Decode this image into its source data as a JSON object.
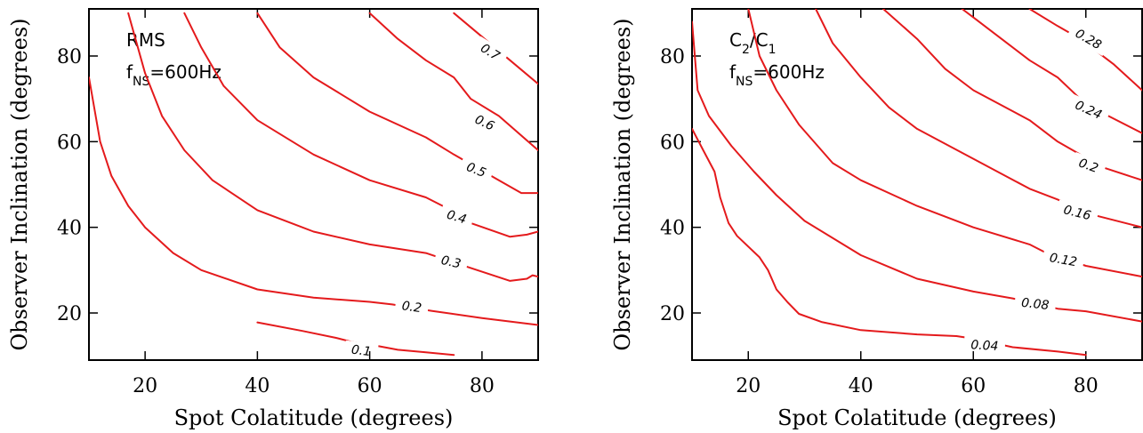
{
  "chart_data": [
    {
      "type": "contour",
      "panel_label_lines": [
        {
          "text": "RMS"
        },
        {
          "text": "f",
          "sub": "NS",
          "after": "=600Hz"
        }
      ],
      "xlabel": "Spot Colatitude (degrees)",
      "ylabel": "Observer Inclination (degrees)",
      "xlim": [
        10,
        90
      ],
      "ylim": [
        9,
        91
      ],
      "xticks": [
        20,
        40,
        60,
        80
      ],
      "yticks": [
        20,
        40,
        60,
        80
      ],
      "line_color": "#e41a1c",
      "contours": [
        {
          "level": 0.1,
          "label": "0.1",
          "label_at": [
            58.5,
            11.3
          ],
          "label_angle": 7,
          "points": [
            [
              40,
              17.8
            ],
            [
              48,
              15.8
            ],
            [
              54,
              14.2
            ],
            [
              57,
              13.2
            ],
            [
              61,
              12.4
            ],
            [
              65,
              11.4
            ],
            [
              70,
              10.8
            ],
            [
              75,
              10.2
            ]
          ]
        },
        {
          "level": 0.2,
          "label": "0.2",
          "label_at": [
            67.5,
            21.5
          ],
          "label_angle": 8,
          "points": [
            [
              10,
              75
            ],
            [
              12,
              60
            ],
            [
              14,
              52
            ],
            [
              17,
              45
            ],
            [
              20,
              40
            ],
            [
              25,
              34
            ],
            [
              30,
              30
            ],
            [
              40,
              25.5
            ],
            [
              50,
              23.6
            ],
            [
              60,
              22.6
            ],
            [
              64,
              22
            ],
            [
              71,
              20.5
            ],
            [
              80,
              18.8
            ],
            [
              90,
              17.2
            ]
          ]
        },
        {
          "level": 0.3,
          "label": "0.3",
          "label_at": [
            74.5,
            32
          ],
          "label_angle": 13,
          "points": [
            [
              17,
              90
            ],
            [
              20,
              76
            ],
            [
              23,
              66
            ],
            [
              27,
              58
            ],
            [
              32,
              51
            ],
            [
              40,
              44
            ],
            [
              50,
              39
            ],
            [
              60,
              36
            ],
            [
              70,
              34
            ],
            [
              78,
              30.5
            ],
            [
              85,
              27.5
            ],
            [
              88,
              28
            ],
            [
              89,
              28.8
            ],
            [
              90,
              28.5
            ]
          ]
        },
        {
          "level": 0.4,
          "label": "0.4",
          "label_at": [
            75.5,
            42.5
          ],
          "label_angle": 17,
          "points": [
            [
              27,
              90
            ],
            [
              30,
              82
            ],
            [
              34,
              73
            ],
            [
              40,
              65
            ],
            [
              50,
              57
            ],
            [
              60,
              51
            ],
            [
              70,
              47
            ],
            [
              73,
              45
            ],
            [
              78,
              41
            ],
            [
              85,
              37.8
            ],
            [
              88,
              38.3
            ],
            [
              90,
              39
            ]
          ]
        },
        {
          "level": 0.5,
          "label": "0.5",
          "label_at": [
            79,
            53.5
          ],
          "label_angle": 22,
          "points": [
            [
              40,
              90
            ],
            [
              44,
              82
            ],
            [
              50,
              75
            ],
            [
              60,
              67
            ],
            [
              70,
              61
            ],
            [
              75,
              57
            ],
            [
              83,
              51
            ],
            [
              87,
              48
            ],
            [
              90,
              48
            ]
          ]
        },
        {
          "level": 0.6,
          "label": "0.6",
          "label_at": [
            80.5,
            64.5
          ],
          "label_angle": 25,
          "points": [
            [
              60,
              90
            ],
            [
              65,
              84
            ],
            [
              70,
              79
            ],
            [
              75,
              75
            ],
            [
              78,
              70
            ],
            [
              83,
              66
            ],
            [
              90,
              58
            ]
          ]
        },
        {
          "level": 0.7,
          "label": "0.7",
          "label_at": [
            81.5,
            81
          ],
          "label_angle": 32,
          "points": [
            [
              75,
              90
            ],
            [
              80,
              84.5
            ],
            [
              85,
              79
            ],
            [
              90,
              73.5
            ]
          ]
        }
      ]
    },
    {
      "type": "contour",
      "panel_label_lines": [
        {
          "text": "C",
          "sub": "2",
          "after": "/C",
          "sub2": "1"
        },
        {
          "text": "f",
          "sub": "NS",
          "after": "=600Hz"
        }
      ],
      "xlabel": "Spot Colatitude (degrees)",
      "ylabel": "Observer Inclination (degrees)",
      "xlim": [
        10,
        90
      ],
      "ylim": [
        9,
        91
      ],
      "xticks": [
        20,
        40,
        60,
        80
      ],
      "yticks": [
        20,
        40,
        60,
        80
      ],
      "line_color": "#e41a1c",
      "contours": [
        {
          "level": 0.04,
          "label": "0.04",
          "label_at": [
            62,
            12.5
          ],
          "label_angle": 3,
          "points": [
            [
              10,
              63
            ],
            [
              12,
              58
            ],
            [
              14,
              53
            ],
            [
              15,
              47
            ],
            [
              16.5,
              41
            ],
            [
              18,
              38
            ],
            [
              22,
              33
            ],
            [
              23.5,
              30
            ],
            [
              25,
              25.5
            ],
            [
              27,
              22.5
            ],
            [
              29,
              19.8
            ],
            [
              33,
              17.9
            ],
            [
              40,
              16
            ],
            [
              50,
              15
            ],
            [
              57,
              14.6
            ],
            [
              60,
              14
            ],
            [
              67,
              12
            ],
            [
              75,
              11
            ],
            [
              80,
              10.2
            ]
          ]
        },
        {
          "level": 0.08,
          "label": "0.08",
          "label_at": [
            71,
            22.2
          ],
          "label_angle": 6,
          "points": [
            [
              10,
              88
            ],
            [
              11,
              72
            ],
            [
              13,
              66
            ],
            [
              17,
              59
            ],
            [
              21,
              53
            ],
            [
              25,
              47.5
            ],
            [
              30,
              41.5
            ],
            [
              40,
              33.5
            ],
            [
              50,
              28
            ],
            [
              60,
              25
            ],
            [
              67,
              23.4
            ],
            [
              75,
              21
            ],
            [
              80,
              20.4
            ],
            [
              90,
              18
            ]
          ]
        },
        {
          "level": 0.12,
          "label": "0.12",
          "label_at": [
            76,
            32.5
          ],
          "label_angle": 10,
          "points": [
            [
              20,
              91
            ],
            [
              22,
              80
            ],
            [
              25,
              72
            ],
            [
              29,
              64
            ],
            [
              35,
              55
            ],
            [
              40,
              51
            ],
            [
              50,
              45
            ],
            [
              60,
              40
            ],
            [
              70,
              36
            ],
            [
              73,
              34
            ],
            [
              80,
              31
            ],
            [
              90,
              28.5
            ]
          ]
        },
        {
          "level": 0.16,
          "label": "0.16",
          "label_at": [
            78.5,
            43.5
          ],
          "label_angle": 14,
          "points": [
            [
              32,
              91
            ],
            [
              35,
              83
            ],
            [
              40,
              75
            ],
            [
              45,
              68
            ],
            [
              50,
              63
            ],
            [
              60,
              56
            ],
            [
              70,
              49
            ],
            [
              75,
              46.5
            ],
            [
              81,
              43
            ],
            [
              90,
              40
            ]
          ]
        },
        {
          "level": 0.2,
          "label": "0.2",
          "label_at": [
            80.5,
            54.5
          ],
          "label_angle": 20,
          "points": [
            [
              44,
              91
            ],
            [
              50,
              84
            ],
            [
              55,
              77
            ],
            [
              60,
              72
            ],
            [
              70,
              65
            ],
            [
              75,
              60
            ],
            [
              83,
              54
            ],
            [
              90,
              51
            ]
          ]
        },
        {
          "level": 0.24,
          "label": "0.24",
          "label_at": [
            80.5,
            67.5
          ],
          "label_angle": 24,
          "points": [
            [
              58,
              91
            ],
            [
              60,
              89
            ],
            [
              65,
              84
            ],
            [
              70,
              79
            ],
            [
              75,
              75
            ],
            [
              79,
              70
            ],
            [
              84,
              66
            ],
            [
              90,
              62
            ]
          ]
        },
        {
          "level": 0.28,
          "label": "0.28",
          "label_at": [
            80.5,
            84
          ],
          "label_angle": 30,
          "points": [
            [
              70,
              91
            ],
            [
              75,
              87
            ],
            [
              79,
              84
            ],
            [
              85,
              78
            ],
            [
              90,
              72
            ]
          ]
        }
      ]
    }
  ]
}
